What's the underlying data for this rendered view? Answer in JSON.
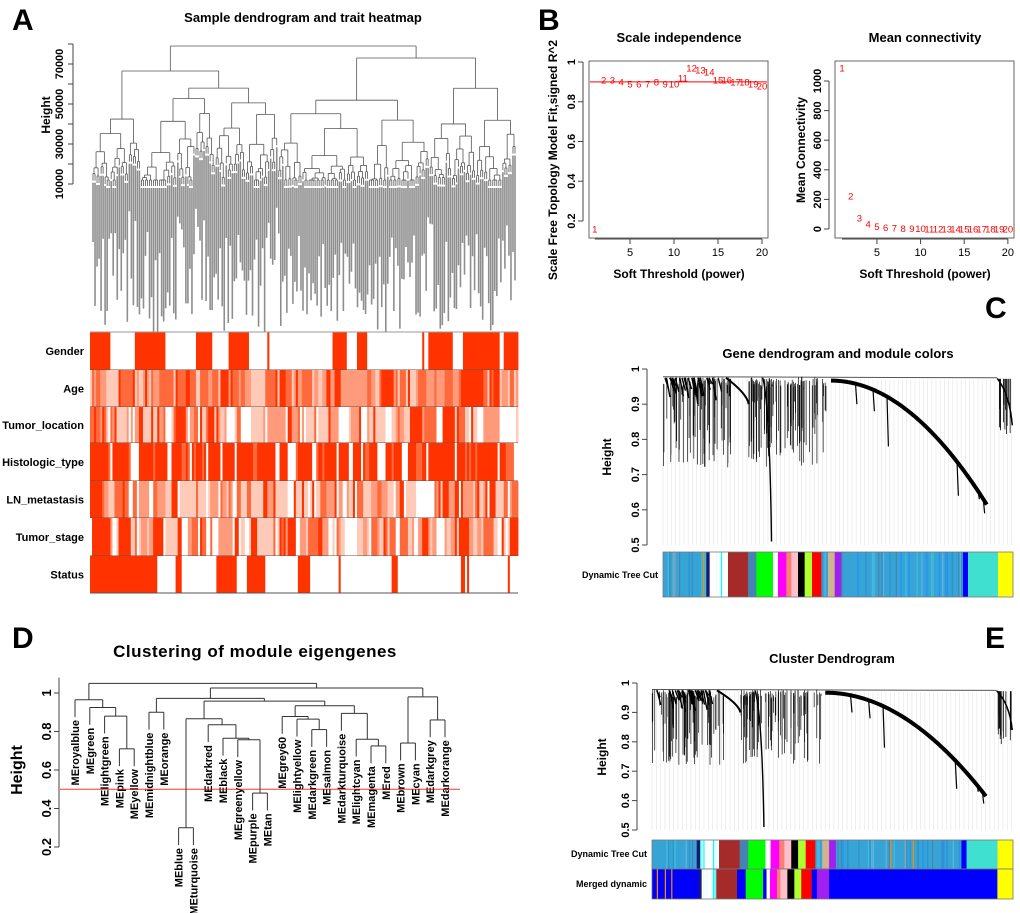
{
  "panel_labels": {
    "a": "A",
    "b": "B",
    "c": "C",
    "d": "D",
    "e": "E"
  },
  "chart_data": [
    {
      "type": "heatmap",
      "title": "Sample dendrogram and trait heatmap",
      "ylabel": "Height",
      "yticks": [
        10000,
        30000,
        50000,
        70000
      ],
      "ylim": [
        10000,
        80000
      ],
      "rows": [
        "Gender",
        "Age",
        "Tumor_location",
        "Histologic_type",
        "LN_metastasis",
        "Tumor_stage",
        "Status"
      ],
      "color": "#ff3300"
    },
    {
      "type": "scatter",
      "title": "Scale independence",
      "xlabel": "Soft Threshold (power)",
      "ylabel": "Scale Free Topology Model Fit,signed R^2",
      "xticks": [
        5,
        10,
        15,
        20
      ],
      "yticks": [
        0.2,
        0.4,
        0.6,
        0.8,
        1.0
      ],
      "xlim": [
        1,
        20
      ],
      "ylim": [
        0.2,
        1.0
      ],
      "cutoff": 0.9,
      "x": [
        1,
        2,
        3,
        4,
        5,
        6,
        7,
        8,
        9,
        10,
        11,
        12,
        13,
        14,
        15,
        16,
        17,
        18,
        19,
        20
      ],
      "y": [
        0.16,
        0.91,
        0.91,
        0.9,
        0.89,
        0.89,
        0.89,
        0.9,
        0.89,
        0.89,
        0.92,
        0.97,
        0.96,
        0.95,
        0.91,
        0.91,
        0.9,
        0.9,
        0.89,
        0.88
      ],
      "marker_color": "#ff0000"
    },
    {
      "type": "scatter",
      "title": "Mean connectivity",
      "xlabel": "Soft Threshold (power)",
      "ylabel": "Mean Connectivity",
      "xticks": [
        5,
        10,
        15,
        20
      ],
      "yticks": [
        0,
        200,
        400,
        600,
        800,
        1000
      ],
      "xlim": [
        1,
        20
      ],
      "ylim": [
        0,
        1000
      ],
      "x": [
        1,
        2,
        3,
        4,
        5,
        6,
        7,
        8,
        9,
        10,
        11,
        12,
        13,
        14,
        15,
        16,
        17,
        18,
        19,
        20
      ],
      "y": [
        1087,
        224,
        74,
        34,
        18,
        9,
        6,
        4,
        3,
        2,
        1,
        1,
        1,
        0,
        0,
        0,
        0,
        0,
        0,
        0
      ],
      "marker_color": "#ff0000"
    },
    {
      "type": "dendrogram",
      "title": "Gene dendrogram and module colors",
      "ylabel": "Height",
      "yticks": [
        0.5,
        0.6,
        0.7,
        0.8,
        0.9,
        1.0
      ],
      "ylim": [
        0.5,
        1.0
      ],
      "color_rows": [
        {
          "label": "Dynamic Tree Cut",
          "segments": [
            {
              "color": "#36a5d6",
              "w": 130,
              "mixed": true
            },
            {
              "color": "#191970",
              "w": 10
            },
            {
              "color": "#ffffff",
              "w": 55,
              "mixed": true
            },
            {
              "color": "#a52a2a",
              "w": 60
            },
            {
              "color": "#4682b4",
              "w": 25
            },
            {
              "color": "#00ff00",
              "w": 50
            },
            {
              "color": "#ffffff",
              "w": 15
            },
            {
              "color": "#ff00ff",
              "w": 25
            },
            {
              "color": "#fa8072",
              "w": 15
            },
            {
              "color": "#ffc0cb",
              "w": 20
            },
            {
              "color": "#000000",
              "w": 20
            },
            {
              "color": "#adff2f",
              "w": 22
            },
            {
              "color": "#ff0000",
              "w": 28
            },
            {
              "color": "#36a5d6",
              "w": 20,
              "mixed": true
            },
            {
              "color": "#d2b48c",
              "w": 20
            },
            {
              "color": "#a020f0",
              "w": 20
            },
            {
              "color": "#36a5d6",
              "w": 365,
              "mixed": true
            },
            {
              "color": "#0000ff",
              "w": 15
            },
            {
              "color": "#40e0d0",
              "w": 90
            },
            {
              "color": "#ffff00",
              "w": 45
            }
          ]
        }
      ]
    },
    {
      "type": "dendrogram",
      "title": "Clustering of module eigengenes",
      "ylabel": "Height",
      "yticks": [
        0.2,
        0.4,
        0.6,
        0.8,
        1.0
      ],
      "ylim": [
        0.2,
        1.08
      ],
      "cut_height": 0.5,
      "cut_color": "#ff0000",
      "tree": {
        "h": 1.05,
        "c": [
          {
            "h": 0.965,
            "c": [
              "MEroyalblue",
              {
                "h": 0.925,
                "c": [
                  "MEgreen",
                  {
                    "h": 0.88,
                    "c": [
                      "MElightgreen",
                      {
                        "h": 0.71,
                        "c": [
                          "MEpink",
                          "MEyellow"
                        ]
                      }
                    ]
                  }
                ]
              }
            ]
          },
          {
            "h": 1.026,
            "c": [
              {
                "h": 0.972,
                "c": [
                  {
                    "h": 0.9,
                    "c": [
                      "MEmidnightblue",
                      "MEorange"
                    ]
                  },
                  {
                    "h": 0.958,
                    "c": [
                      {
                        "h": 0.866,
                        "c": [
                          {
                            "h": 0.3,
                            "c": [
                              "MEblue",
                              "MEturquoise"
                            ]
                          },
                          {
                            "h": 0.835,
                            "c": [
                              "MEdarkred",
                              {
                                "h": 0.765,
                                "c": [
                                  "MEblack",
                                  {
                                    "h": 0.757,
                                    "c": [
                                      "MEgreenyellow",
                                      {
                                        "h": 0.48,
                                        "c": [
                                          "MEpurple",
                                          "MEtan"
                                        ]
                                      }
                                    ]
                                  }
                                ]
                              }
                            ]
                          }
                        ]
                      },
                      {
                        "h": 0.934,
                        "c": [
                          {
                            "h": 0.878,
                            "c": [
                              "MEgrey60",
                              {
                                "h": 0.864,
                                "c": [
                                  "MElightyellow",
                                  {
                                    "h": 0.81,
                                    "c": [
                                      "MEdarkgreen",
                                      "MEsalmon"
                                    ]
                                  }
                                ]
                              }
                            ]
                          },
                          {
                            "h": 0.894,
                            "c": [
                              "MEdarkturquoise",
                              {
                                "h": 0.76,
                                "c": [
                                  "MElightcyan",
                                  {
                                    "h": 0.725,
                                    "c": [
                                      "MEmagenta",
                                      "MEred"
                                    ]
                                  }
                                ]
                              }
                            ]
                          }
                        ]
                      }
                    ]
                  }
                ]
              },
              {
                "h": 0.98,
                "c": [
                  {
                    "h": 0.74,
                    "c": [
                      "MEbrown",
                      "MEcyan"
                    ]
                  },
                  {
                    "h": 0.86,
                    "c": [
                      "MEdarkgrey",
                      "MEdarkorange"
                    ]
                  }
                ]
              }
            ]
          }
        ]
      }
    },
    {
      "type": "dendrogram",
      "title": "Cluster Dendrogram",
      "ylabel": "Height",
      "yticks": [
        0.5,
        0.6,
        0.7,
        0.8,
        0.9,
        1.0
      ],
      "ylim": [
        0.5,
        1.0
      ],
      "color_rows": [
        {
          "label": "Dynamic Tree Cut",
          "segments": [
            {
              "color": "#36a5d6",
              "w": 130,
              "mixed": true
            },
            {
              "color": "#191970",
              "w": 10
            },
            {
              "color": "#ffffff",
              "w": 55,
              "mixed": true
            },
            {
              "color": "#a52a2a",
              "w": 60
            },
            {
              "color": "#4682b4",
              "w": 25
            },
            {
              "color": "#00ff00",
              "w": 50
            },
            {
              "color": "#ffffff",
              "w": 15
            },
            {
              "color": "#ff00ff",
              "w": 25
            },
            {
              "color": "#fa8072",
              "w": 15
            },
            {
              "color": "#ffc0cb",
              "w": 20
            },
            {
              "color": "#000000",
              "w": 20
            },
            {
              "color": "#adff2f",
              "w": 22
            },
            {
              "color": "#ff0000",
              "w": 28
            },
            {
              "color": "#36a5d6",
              "w": 20,
              "mixed": true
            },
            {
              "color": "#d2b48c",
              "w": 20
            },
            {
              "color": "#a020f0",
              "w": 20
            },
            {
              "color": "#36a5d6",
              "w": 365,
              "mixed": true
            },
            {
              "color": "#0000ff",
              "w": 15
            },
            {
              "color": "#40e0d0",
              "w": 90
            },
            {
              "color": "#ffff00",
              "w": 45
            }
          ]
        },
        {
          "label": "Merged dynamic",
          "segments": [
            {
              "color": "#0000ff",
              "w": 135,
              "mixed": true
            },
            {
              "color": "#191970",
              "w": 8
            },
            {
              "color": "#ffffff",
              "w": 42,
              "mixed": true
            },
            {
              "color": "#a52a2a",
              "w": 60
            },
            {
              "color": "#0000ff",
              "w": 25
            },
            {
              "color": "#00ff00",
              "w": 50
            },
            {
              "color": "#0000ff",
              "w": 10
            },
            {
              "color": "#ffffff",
              "w": 10
            },
            {
              "color": "#ff00ff",
              "w": 20
            },
            {
              "color": "#fa8072",
              "w": 10
            },
            {
              "color": "#ffc0cb",
              "w": 20
            },
            {
              "color": "#000000",
              "w": 20
            },
            {
              "color": "#adff2f",
              "w": 20
            },
            {
              "color": "#ff0000",
              "w": 30
            },
            {
              "color": "#0000ff",
              "w": 15
            },
            {
              "color": "#a020f0",
              "w": 35
            },
            {
              "color": "#0000ff",
              "w": 485
            },
            {
              "color": "#ffff00",
              "w": 45
            }
          ]
        }
      ]
    }
  ]
}
